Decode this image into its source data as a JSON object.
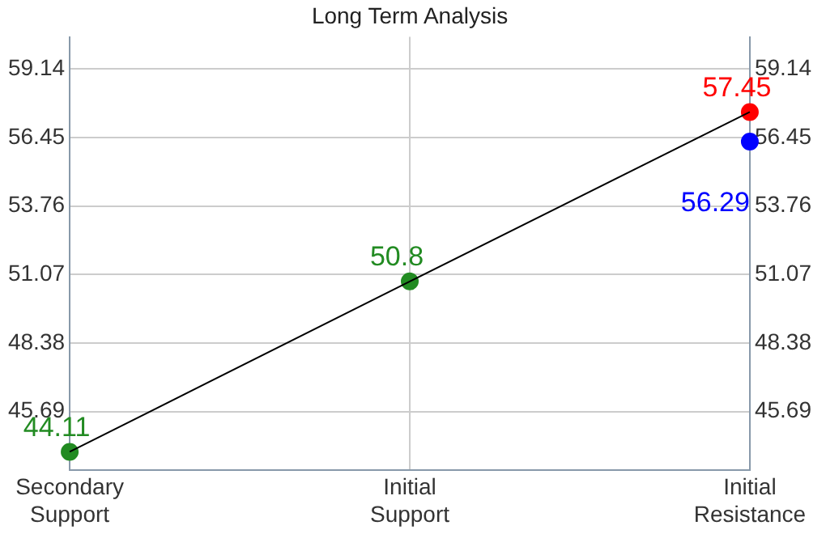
{
  "chart_data": {
    "type": "scatter",
    "title": "Long Term Analysis",
    "categories": [
      "Secondary Support",
      "Initial Support",
      "Initial Resistance"
    ],
    "ylim": [
      43.4,
      60.4
    ],
    "yticks": [
      45.69,
      48.38,
      51.07,
      53.76,
      56.45,
      59.14
    ],
    "y2lim": [
      43.4,
      60.4
    ],
    "y2ticks": [
      45.69,
      48.38,
      51.07,
      53.76,
      56.45,
      59.14
    ],
    "grid": true,
    "legend": false,
    "marker": "circle",
    "series": [
      {
        "type": "line",
        "color": "#000000",
        "values": [
          44.11,
          50.8,
          57.45
        ],
        "marker": "none"
      },
      {
        "color": "#228b22",
        "values": [
          44.11,
          50.8,
          null
        ],
        "value_labels": [
          "44.11",
          "50.8",
          null
        ]
      },
      {
        "color": "#0000ff",
        "values": [
          null,
          null,
          56.29
        ],
        "value_labels": [
          null,
          null,
          "56.29"
        ]
      },
      {
        "color": "#ff0000",
        "values": [
          null,
          null,
          57.45
        ],
        "value_labels": [
          null,
          null,
          "57.45"
        ]
      }
    ]
  }
}
